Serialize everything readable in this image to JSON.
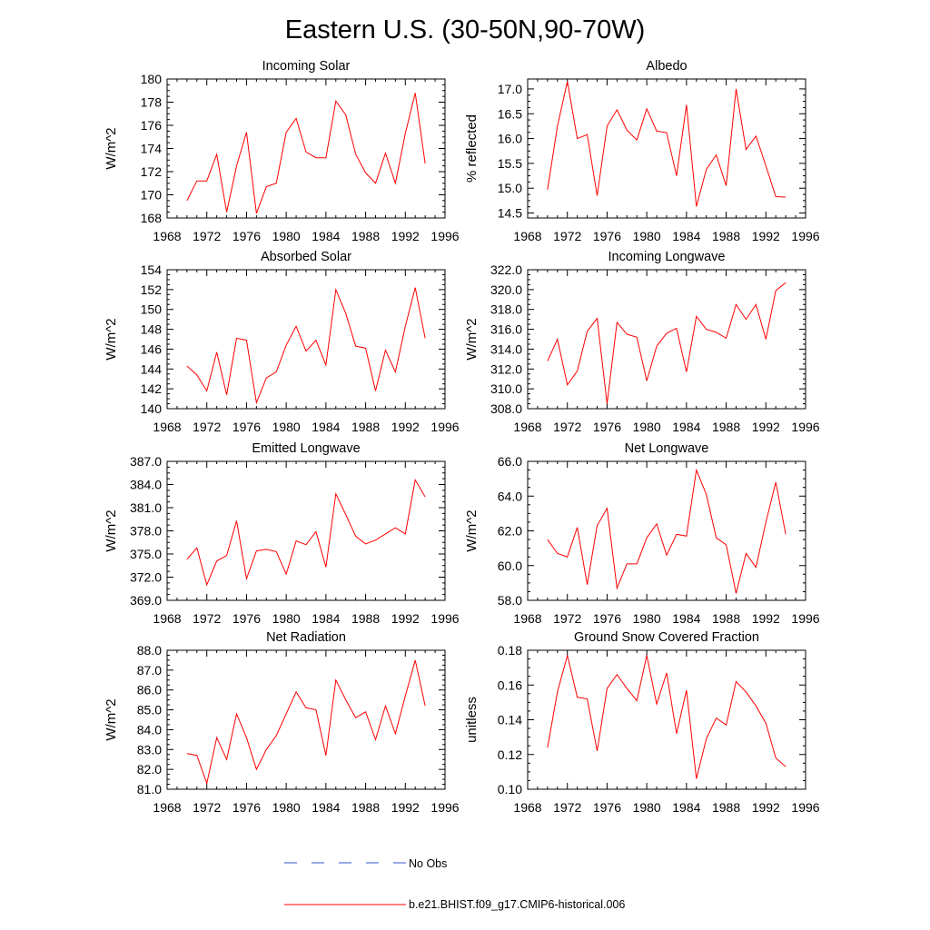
{
  "figure_title": "Eastern U.S. (30-50N,90-70W)",
  "colors": {
    "model_line": "#ff0000",
    "obs_line": "#3355cc",
    "axes": "#000000"
  },
  "legend": [
    {
      "label": "No Obs",
      "style": "dashed",
      "color": "#3355cc"
    },
    {
      "label": "b.e21.BHIST.f09_g17.CMIP6-historical.006",
      "style": "solid",
      "color": "#ff0000"
    }
  ],
  "chart_data": [
    {
      "type": "line",
      "title": "Incoming Solar",
      "xlabel": "",
      "ylabel": "W/m^2",
      "xlim": [
        1968,
        1996
      ],
      "ylim": [
        168,
        180
      ],
      "xticks": [
        1968,
        1972,
        1976,
        1980,
        1984,
        1988,
        1992,
        1996
      ],
      "yticks": [
        168,
        170,
        172,
        174,
        176,
        178,
        180
      ],
      "ytick_labels": [
        "168",
        "170",
        "172",
        "174",
        "176",
        "178",
        "180"
      ],
      "x": [
        1970,
        1971,
        1972,
        1973,
        1974,
        1975,
        1976,
        1977,
        1978,
        1979,
        1980,
        1981,
        1982,
        1983,
        1984,
        1985,
        1986,
        1987,
        1988,
        1989,
        1990,
        1991,
        1992,
        1993,
        1994
      ],
      "series": [
        {
          "name": "b.e21.BHIST.f09_g17.CMIP6-historical.006",
          "values": [
            169.5,
            171.2,
            171.2,
            173.5,
            168.5,
            172.5,
            175.4,
            168.4,
            170.7,
            171.0,
            175.4,
            176.6,
            173.7,
            173.2,
            173.2,
            178.1,
            176.9,
            173.5,
            171.9,
            171.0,
            173.6,
            171.0,
            175.3,
            178.8,
            172.7
          ]
        }
      ]
    },
    {
      "type": "line",
      "title": "Albedo",
      "xlabel": "",
      "ylabel": "% reflected",
      "xlim": [
        1968,
        1996
      ],
      "ylim": [
        14.4,
        17.2
      ],
      "xticks": [
        1968,
        1972,
        1976,
        1980,
        1984,
        1988,
        1992,
        1996
      ],
      "yticks": [
        14.5,
        15.0,
        15.5,
        16.0,
        16.5,
        17.0
      ],
      "ytick_labels": [
        "14.5",
        "15.0",
        "15.5",
        "16.0",
        "16.5",
        "17.0"
      ],
      "x": [
        1970,
        1971,
        1972,
        1973,
        1974,
        1975,
        1976,
        1977,
        1978,
        1979,
        1980,
        1981,
        1982,
        1983,
        1984,
        1985,
        1986,
        1987,
        1988,
        1989,
        1990,
        1991,
        1992,
        1993,
        1994
      ],
      "series": [
        {
          "name": "b.e21.BHIST.f09_g17.CMIP6-historical.006",
          "values": [
            14.97,
            16.25,
            17.15,
            16.0,
            16.08,
            14.85,
            16.25,
            16.58,
            16.17,
            15.97,
            16.6,
            16.15,
            16.12,
            15.25,
            16.68,
            14.63,
            15.38,
            15.67,
            15.05,
            17.0,
            15.78,
            16.05,
            15.45,
            14.83,
            14.82
          ]
        }
      ]
    },
    {
      "type": "line",
      "title": "Absorbed Solar",
      "xlabel": "",
      "ylabel": "W/m^2",
      "xlim": [
        1968,
        1996
      ],
      "ylim": [
        140,
        154
      ],
      "xticks": [
        1968,
        1972,
        1976,
        1980,
        1984,
        1988,
        1992,
        1996
      ],
      "yticks": [
        140,
        142,
        144,
        146,
        148,
        150,
        152,
        154
      ],
      "ytick_labels": [
        "140",
        "142",
        "144",
        "146",
        "148",
        "150",
        "152",
        "154"
      ],
      "x": [
        1970,
        1971,
        1972,
        1973,
        1974,
        1975,
        1976,
        1977,
        1978,
        1979,
        1980,
        1981,
        1982,
        1983,
        1984,
        1985,
        1986,
        1987,
        1988,
        1989,
        1990,
        1991,
        1992,
        1993,
        1994
      ],
      "series": [
        {
          "name": "b.e21.BHIST.f09_g17.CMIP6-historical.006",
          "values": [
            144.3,
            143.4,
            141.8,
            145.7,
            141.4,
            147.1,
            146.9,
            140.6,
            143.1,
            143.7,
            146.4,
            148.3,
            145.8,
            146.9,
            144.4,
            152.0,
            149.6,
            146.3,
            146.1,
            141.8,
            145.9,
            143.7,
            148.3,
            152.2,
            147.1
          ]
        }
      ]
    },
    {
      "type": "line",
      "title": "Incoming Longwave",
      "xlabel": "",
      "ylabel": "W/m^2",
      "xlim": [
        1968,
        1996
      ],
      "ylim": [
        308,
        322
      ],
      "xticks": [
        1968,
        1972,
        1976,
        1980,
        1984,
        1988,
        1992,
        1996
      ],
      "yticks": [
        308,
        310,
        312,
        314,
        316,
        318,
        320,
        322
      ],
      "ytick_labels": [
        "308.0",
        "310.0",
        "312.0",
        "314.0",
        "316.0",
        "318.0",
        "320.0",
        "322.0"
      ],
      "x": [
        1970,
        1971,
        1972,
        1973,
        1974,
        1975,
        1976,
        1977,
        1978,
        1979,
        1980,
        1981,
        1982,
        1983,
        1984,
        1985,
        1986,
        1987,
        1988,
        1989,
        1990,
        1991,
        1992,
        1993,
        1994
      ],
      "series": [
        {
          "name": "b.e21.BHIST.f09_g17.CMIP6-historical.006",
          "values": [
            312.8,
            315.0,
            310.4,
            311.8,
            315.8,
            317.1,
            308.5,
            316.7,
            315.5,
            315.2,
            310.8,
            314.3,
            315.6,
            316.1,
            311.7,
            317.3,
            316.0,
            315.7,
            315.1,
            318.5,
            317.0,
            318.5,
            315.0,
            319.9,
            320.7
          ]
        }
      ]
    },
    {
      "type": "line",
      "title": "Emitted Longwave",
      "xlabel": "",
      "ylabel": "W/m^2",
      "xlim": [
        1968,
        1996
      ],
      "ylim": [
        369,
        387
      ],
      "xticks": [
        1968,
        1972,
        1976,
        1980,
        1984,
        1988,
        1992,
        1996
      ],
      "yticks": [
        369,
        372,
        375,
        378,
        381,
        384,
        387
      ],
      "ytick_labels": [
        "369.0",
        "372.0",
        "375.0",
        "378.0",
        "381.0",
        "384.0",
        "387.0"
      ],
      "x": [
        1970,
        1971,
        1972,
        1973,
        1974,
        1975,
        1976,
        1977,
        1978,
        1979,
        1980,
        1981,
        1982,
        1983,
        1984,
        1985,
        1986,
        1987,
        1988,
        1989,
        1990,
        1991,
        1992,
        1993,
        1994
      ],
      "series": [
        {
          "name": "b.e21.BHIST.f09_g17.CMIP6-historical.006",
          "values": [
            374.3,
            375.8,
            371.0,
            374.1,
            374.8,
            379.3,
            371.8,
            375.4,
            375.6,
            375.3,
            372.4,
            376.7,
            376.2,
            377.9,
            373.3,
            382.8,
            380.1,
            377.3,
            376.3,
            376.8,
            377.6,
            378.4,
            377.6,
            384.6,
            382.4
          ]
        }
      ]
    },
    {
      "type": "line",
      "title": "Net Longwave",
      "xlabel": "",
      "ylabel": "W/m^2",
      "xlim": [
        1968,
        1996
      ],
      "ylim": [
        58,
        66
      ],
      "xticks": [
        1968,
        1972,
        1976,
        1980,
        1984,
        1988,
        1992,
        1996
      ],
      "yticks": [
        58,
        60,
        62,
        64,
        66
      ],
      "ytick_labels": [
        "58.0",
        "60.0",
        "62.0",
        "64.0",
        "66.0"
      ],
      "x": [
        1970,
        1971,
        1972,
        1973,
        1974,
        1975,
        1976,
        1977,
        1978,
        1979,
        1980,
        1981,
        1982,
        1983,
        1984,
        1985,
        1986,
        1987,
        1988,
        1989,
        1990,
        1991,
        1992,
        1993,
        1994
      ],
      "series": [
        {
          "name": "b.e21.BHIST.f09_g17.CMIP6-historical.006",
          "values": [
            61.5,
            60.7,
            60.5,
            62.2,
            58.9,
            62.3,
            63.3,
            58.7,
            60.1,
            60.1,
            61.6,
            62.4,
            60.6,
            61.8,
            61.7,
            65.5,
            64.1,
            61.6,
            61.2,
            58.4,
            60.7,
            59.9,
            62.5,
            64.8,
            61.8
          ]
        }
      ]
    },
    {
      "type": "line",
      "title": "Net Radiation",
      "xlabel": "",
      "ylabel": "W/m^2",
      "xlim": [
        1968,
        1996
      ],
      "ylim": [
        81,
        88
      ],
      "xticks": [
        1968,
        1972,
        1976,
        1980,
        1984,
        1988,
        1992,
        1996
      ],
      "yticks": [
        81,
        82,
        83,
        84,
        85,
        86,
        87,
        88
      ],
      "ytick_labels": [
        "81.0",
        "82.0",
        "83.0",
        "84.0",
        "85.0",
        "86.0",
        "87.0",
        "88.0"
      ],
      "x": [
        1970,
        1971,
        1972,
        1973,
        1974,
        1975,
        1976,
        1977,
        1978,
        1979,
        1980,
        1981,
        1982,
        1983,
        1984,
        1985,
        1986,
        1987,
        1988,
        1989,
        1990,
        1991,
        1992,
        1993,
        1994
      ],
      "series": [
        {
          "name": "b.e21.BHIST.f09_g17.CMIP6-historical.006",
          "values": [
            82.8,
            82.7,
            81.3,
            83.6,
            82.5,
            84.8,
            83.6,
            82.0,
            83.0,
            83.7,
            84.8,
            85.9,
            85.1,
            85.0,
            82.7,
            86.5,
            85.5,
            84.6,
            84.9,
            83.5,
            85.2,
            83.8,
            85.7,
            87.5,
            85.2
          ]
        }
      ]
    },
    {
      "type": "line",
      "title": "Ground Snow Covered Fraction",
      "xlabel": "",
      "ylabel": "unitless",
      "xlim": [
        1968,
        1996
      ],
      "ylim": [
        0.1,
        0.18
      ],
      "xticks": [
        1968,
        1972,
        1976,
        1980,
        1984,
        1988,
        1992,
        1996
      ],
      "yticks": [
        0.1,
        0.12,
        0.14,
        0.16,
        0.18
      ],
      "ytick_labels": [
        "0.10",
        "0.12",
        "0.14",
        "0.16",
        "0.18"
      ],
      "x": [
        1970,
        1971,
        1972,
        1973,
        1974,
        1975,
        1976,
        1977,
        1978,
        1979,
        1980,
        1981,
        1982,
        1983,
        1984,
        1985,
        1986,
        1987,
        1988,
        1989,
        1990,
        1991,
        1992,
        1993,
        1994
      ],
      "series": [
        {
          "name": "b.e21.BHIST.f09_g17.CMIP6-historical.006",
          "values": [
            0.124,
            0.156,
            0.177,
            0.153,
            0.152,
            0.122,
            0.158,
            0.166,
            0.158,
            0.151,
            0.177,
            0.149,
            0.167,
            0.132,
            0.157,
            0.106,
            0.129,
            0.141,
            0.137,
            0.162,
            0.156,
            0.148,
            0.138,
            0.118,
            0.113
          ]
        }
      ]
    }
  ]
}
